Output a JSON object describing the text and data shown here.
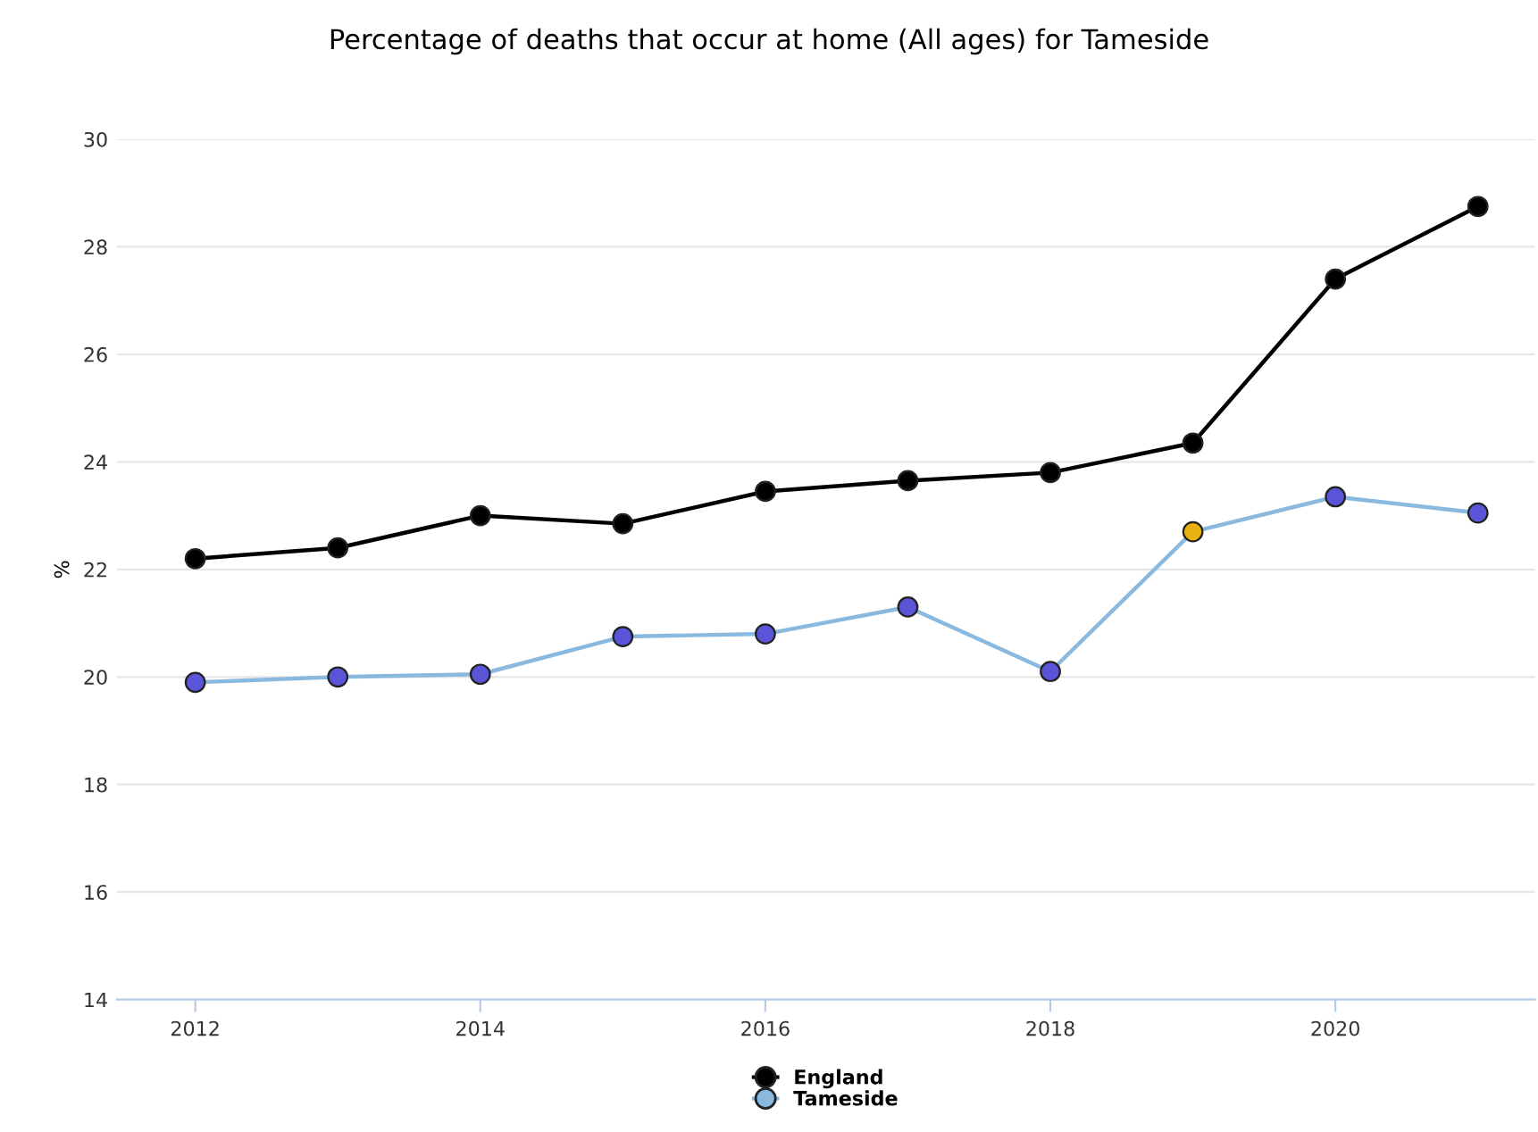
{
  "chart_data": {
    "type": "line",
    "title": "Percentage of deaths that occur at home (All ages) for Tameside",
    "ylabel": "%",
    "x": [
      2012,
      2013,
      2014,
      2015,
      2016,
      2017,
      2018,
      2019,
      2020,
      2021
    ],
    "series": [
      {
        "name": "England",
        "color": "#000000",
        "values": [
          22.2,
          22.4,
          23.0,
          22.85,
          23.45,
          23.65,
          23.8,
          24.35,
          27.4,
          28.75
        ]
      },
      {
        "name": "Tameside",
        "color": "#8ab9e0",
        "colors": [
          "#5a55d8",
          "#5a55d8",
          "#5a55d8",
          "#5a55d8",
          "#5a55d8",
          "#5a55d8",
          "#5a55d8",
          "#e8b010",
          "#5a55d8",
          "#5a55d8"
        ],
        "values": [
          19.9,
          20.0,
          20.05,
          20.75,
          20.8,
          21.3,
          20.1,
          22.7,
          23.35,
          23.05
        ]
      }
    ],
    "xlim": [
      2011.45,
      2021.4
    ],
    "xticks": [
      2012,
      2014,
      2016,
      2018,
      2020
    ],
    "ylim": [
      14,
      30
    ],
    "yticks": [
      14,
      16,
      18,
      20,
      22,
      24,
      26,
      28,
      30
    ],
    "grid": "y",
    "legend": "bottom",
    "marker": "circle",
    "line_style": "solid"
  }
}
